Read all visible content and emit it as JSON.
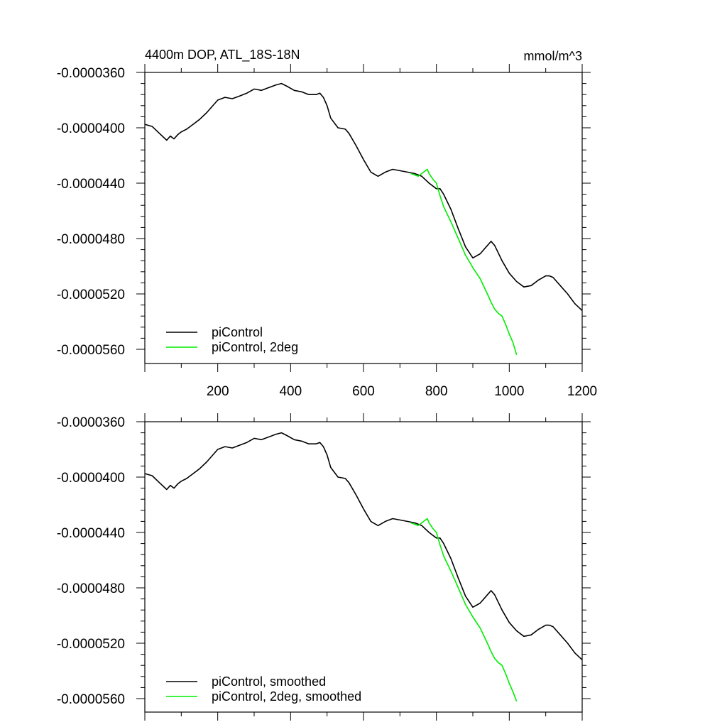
{
  "figure": {
    "title_left": "4400m DOP, ATL_18S-18N",
    "title_right": "mmol/m^3"
  },
  "colors": {
    "black": "#000000",
    "green": "#00ee00"
  },
  "chart_data": [
    {
      "type": "line",
      "title": "4400m DOP, ATL_18S-18N",
      "units": "mmol/m^3",
      "xlim": [
        0,
        1200
      ],
      "ylim": [
        -5.64e-05,
        -3.6e-05
      ],
      "x_ticks": [
        200,
        400,
        600,
        800,
        1000,
        1200
      ],
      "x_tick_labels": [
        "200",
        "400",
        "600",
        "800",
        "1000",
        "1200"
      ],
      "y_ticks": [
        -3.6e-05,
        -4e-05,
        -4.4e-05,
        -4.8e-05,
        -5.2e-05,
        -5.6e-05
      ],
      "y_tick_labels": [
        "-0.0000360",
        "-0.0000400",
        "-0.0000440",
        "-0.0000480",
        "-0.0000520",
        "-0.0000560"
      ],
      "legend": "bottom-left",
      "series": [
        {
          "name": "piControl",
          "color": "#000000",
          "x": [
            0,
            20,
            40,
            60,
            70,
            80,
            90,
            100,
            115,
            130,
            150,
            170,
            190,
            200,
            220,
            240,
            260,
            280,
            300,
            320,
            340,
            360,
            375,
            390,
            410,
            430,
            450,
            470,
            480,
            490,
            500,
            510,
            530,
            550,
            560,
            580,
            600,
            620,
            640,
            660,
            680,
            700,
            720,
            740,
            760,
            780,
            800,
            810,
            820,
            840,
            860,
            880,
            900,
            920,
            940,
            950,
            960,
            980,
            1000,
            1020,
            1040,
            1060,
            1080,
            1100,
            1110,
            1120,
            1140,
            1160,
            1180,
            1200
          ],
          "y": [
            -3.975e-05,
            -3.99e-05,
            -4.04e-05,
            -4.09e-05,
            -4.06e-05,
            -4.08e-05,
            -4.05e-05,
            -4.03e-05,
            -4.01e-05,
            -3.98e-05,
            -3.94e-05,
            -3.89e-05,
            -3.83e-05,
            -3.8e-05,
            -3.78e-05,
            -3.79e-05,
            -3.77e-05,
            -3.75e-05,
            -3.72e-05,
            -3.73e-05,
            -3.71e-05,
            -3.69e-05,
            -3.68e-05,
            -3.7e-05,
            -3.73e-05,
            -3.74e-05,
            -3.76e-05,
            -3.76e-05,
            -3.75e-05,
            -3.78e-05,
            -3.84e-05,
            -3.93e-05,
            -4e-05,
            -4.01e-05,
            -4.04e-05,
            -4.13e-05,
            -4.23e-05,
            -4.32e-05,
            -4.35e-05,
            -4.32e-05,
            -4.3e-05,
            -4.31e-05,
            -4.32e-05,
            -4.33e-05,
            -4.35e-05,
            -4.4e-05,
            -4.44e-05,
            -4.44e-05,
            -4.48e-05,
            -4.59e-05,
            -4.73e-05,
            -4.86e-05,
            -4.94e-05,
            -4.91e-05,
            -4.85e-05,
            -4.82e-05,
            -4.85e-05,
            -4.96e-05,
            -5.05e-05,
            -5.11e-05,
            -5.15e-05,
            -5.14e-05,
            -5.1e-05,
            -5.07e-05,
            -5.07e-05,
            -5.08e-05,
            -5.14e-05,
            -5.2e-05,
            -5.27e-05,
            -5.32e-05
          ]
        },
        {
          "name": "piControl, 2deg",
          "color": "#00ee00",
          "x": [
            730,
            750,
            760,
            770,
            775,
            780,
            790,
            800,
            810,
            820,
            840,
            860,
            880,
            900,
            920,
            940,
            950,
            960,
            970,
            980,
            990,
            1000,
            1010,
            1020
          ],
          "y": [
            -4.33e-05,
            -4.35e-05,
            -4.33e-05,
            -4.31e-05,
            -4.3e-05,
            -4.33e-05,
            -4.37e-05,
            -4.4e-05,
            -4.49e-05,
            -4.57e-05,
            -4.68e-05,
            -4.8e-05,
            -4.92e-05,
            -5.01e-05,
            -5.09e-05,
            -5.2e-05,
            -5.26e-05,
            -5.31e-05,
            -5.34e-05,
            -5.36e-05,
            -5.42e-05,
            -5.49e-05,
            -5.55e-05,
            -5.64e-05
          ]
        }
      ]
    },
    {
      "type": "line",
      "xlim": [
        0,
        1200
      ],
      "ylim": [
        -5.64e-05,
        -3.6e-05
      ],
      "y_ticks": [
        -3.6e-05,
        -4e-05,
        -4.4e-05,
        -4.8e-05,
        -5.2e-05,
        -5.6e-05
      ],
      "y_tick_labels": [
        "-0.0000360",
        "-0.0000400",
        "-0.0000440",
        "-0.0000480",
        "-0.0000520",
        "-0.0000560"
      ],
      "legend": "bottom-left",
      "series": [
        {
          "name": "piControl, smoothed",
          "color": "#000000",
          "x": [
            0,
            20,
            40,
            60,
            70,
            80,
            90,
            100,
            115,
            130,
            150,
            170,
            190,
            200,
            220,
            240,
            260,
            280,
            300,
            320,
            340,
            360,
            375,
            390,
            410,
            430,
            450,
            470,
            480,
            490,
            500,
            510,
            530,
            550,
            560,
            580,
            600,
            620,
            640,
            660,
            680,
            700,
            720,
            740,
            760,
            780,
            800,
            810,
            820,
            840,
            860,
            880,
            900,
            920,
            940,
            950,
            960,
            980,
            1000,
            1020,
            1040,
            1060,
            1080,
            1100,
            1110,
            1120,
            1140,
            1160,
            1180,
            1200
          ],
          "y": [
            -3.975e-05,
            -3.99e-05,
            -4.04e-05,
            -4.09e-05,
            -4.06e-05,
            -4.08e-05,
            -4.05e-05,
            -4.03e-05,
            -4.01e-05,
            -3.98e-05,
            -3.94e-05,
            -3.89e-05,
            -3.83e-05,
            -3.8e-05,
            -3.78e-05,
            -3.79e-05,
            -3.77e-05,
            -3.75e-05,
            -3.72e-05,
            -3.73e-05,
            -3.71e-05,
            -3.69e-05,
            -3.68e-05,
            -3.7e-05,
            -3.73e-05,
            -3.74e-05,
            -3.76e-05,
            -3.76e-05,
            -3.75e-05,
            -3.78e-05,
            -3.84e-05,
            -3.93e-05,
            -4e-05,
            -4.01e-05,
            -4.04e-05,
            -4.13e-05,
            -4.23e-05,
            -4.32e-05,
            -4.35e-05,
            -4.32e-05,
            -4.3e-05,
            -4.31e-05,
            -4.32e-05,
            -4.33e-05,
            -4.35e-05,
            -4.4e-05,
            -4.44e-05,
            -4.44e-05,
            -4.48e-05,
            -4.59e-05,
            -4.73e-05,
            -4.86e-05,
            -4.94e-05,
            -4.91e-05,
            -4.85e-05,
            -4.82e-05,
            -4.85e-05,
            -4.96e-05,
            -5.05e-05,
            -5.11e-05,
            -5.15e-05,
            -5.14e-05,
            -5.1e-05,
            -5.07e-05,
            -5.07e-05,
            -5.08e-05,
            -5.14e-05,
            -5.2e-05,
            -5.27e-05,
            -5.32e-05
          ]
        },
        {
          "name": "piControl, 2deg, smoothed",
          "color": "#00ee00",
          "x": [
            730,
            750,
            760,
            770,
            775,
            780,
            790,
            800,
            810,
            820,
            840,
            860,
            880,
            900,
            920,
            940,
            950,
            960,
            970,
            980,
            990,
            1000,
            1010,
            1020
          ],
          "y": [
            -4.33e-05,
            -4.35e-05,
            -4.33e-05,
            -4.31e-05,
            -4.3e-05,
            -4.33e-05,
            -4.37e-05,
            -4.4e-05,
            -4.49e-05,
            -4.57e-05,
            -4.68e-05,
            -4.8e-05,
            -4.92e-05,
            -5.01e-05,
            -5.09e-05,
            -5.2e-05,
            -5.26e-05,
            -5.31e-05,
            -5.34e-05,
            -5.36e-05,
            -5.42e-05,
            -5.49e-05,
            -5.55e-05,
            -5.62e-05
          ]
        }
      ]
    }
  ]
}
